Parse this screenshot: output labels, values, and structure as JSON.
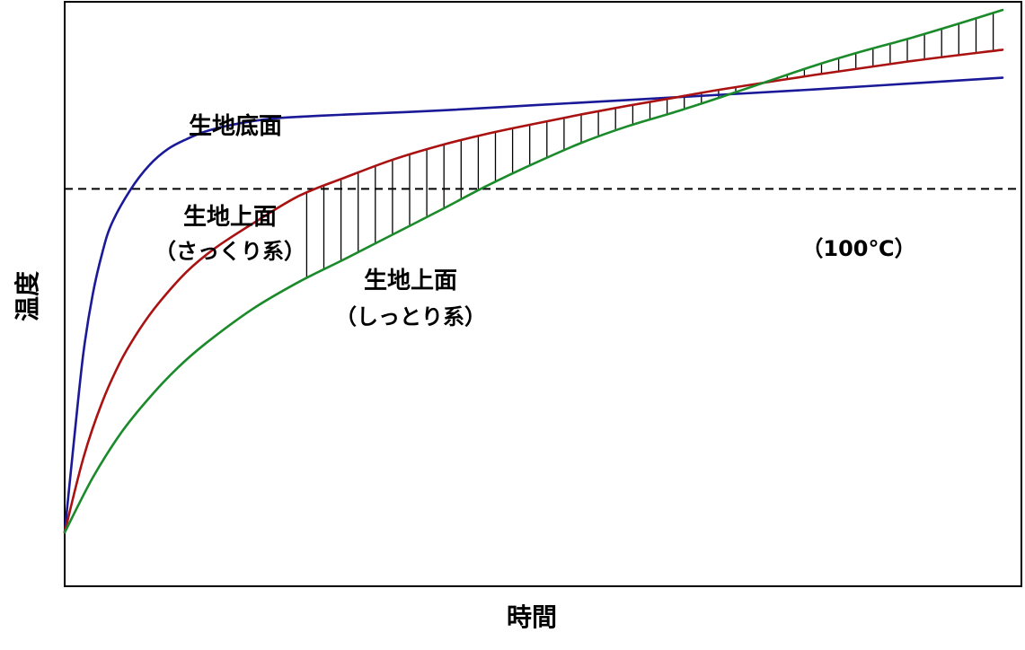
{
  "chart_data": {
    "type": "line",
    "title": "",
    "xlabel": "時間",
    "ylabel": "温度",
    "xlim": [
      0,
      100
    ],
    "ylim": [
      0,
      100
    ],
    "grid": false,
    "legend": "none",
    "reference_line": {
      "y": 68,
      "label": "（100℃）",
      "style": "dashed"
    },
    "shaded_region": {
      "between": [
        "crisp_top",
        "moist_top"
      ],
      "hatch": "vertical",
      "x_from": 25.8,
      "x_to": 100
    },
    "series": [
      {
        "id": "bottom",
        "name": "生地底面",
        "color": "#1a1a99",
        "x": [
          0,
          1,
          2,
          3,
          4,
          5,
          7,
          9,
          11,
          13,
          15,
          18,
          22,
          26,
          30,
          40,
          50,
          60,
          70,
          80,
          90,
          100
        ],
        "y": [
          9.2,
          25,
          40,
          50,
          57,
          62,
          67.8,
          72,
          74.8,
          76.5,
          77.8,
          79,
          80,
          80.4,
          80.7,
          81.4,
          82.3,
          83.2,
          84.1,
          85,
          86,
          87
        ]
      },
      {
        "id": "crisp_top",
        "name": "生地上面",
        "name2": "（さっくり系）",
        "color": "#aa1111",
        "x": [
          0,
          2,
          4,
          6,
          8,
          10,
          13,
          16,
          20,
          25,
          30,
          35,
          40,
          45,
          50,
          55,
          60,
          65,
          70,
          80,
          90,
          100
        ],
        "y": [
          9.2,
          22,
          31.5,
          38.6,
          44,
          48.4,
          53.8,
          57.8,
          62,
          66.8,
          70,
          73,
          75.4,
          77.4,
          79.1,
          80.7,
          82.2,
          83.6,
          85,
          87.5,
          89.8,
          91.8
        ]
      },
      {
        "id": "moist_top",
        "name": "生地上面",
        "name2": "（しっとり系）",
        "color": "#1a8a2a",
        "x": [
          0,
          3,
          6,
          9,
          12,
          15,
          20,
          25,
          30,
          35,
          40,
          45,
          50,
          55,
          60,
          65,
          70,
          75,
          80,
          85,
          90,
          95,
          100
        ],
        "y": [
          9.2,
          18.6,
          26.2,
          32.2,
          37.3,
          41.5,
          47.4,
          52.1,
          56.1,
          60.2,
          64.3,
          68.5,
          72.3,
          75.8,
          78.7,
          81.1,
          83.7,
          86.4,
          89.1,
          91.5,
          93.7,
          96.1,
          98.6
        ]
      }
    ],
    "annotations": [
      {
        "series": "bottom",
        "lines": [
          "生地底面"
        ]
      },
      {
        "series": "crisp_top",
        "lines": [
          "生地上面",
          "（さっくり系）"
        ]
      },
      {
        "series": "moist_top",
        "lines": [
          "生地上面",
          "（しっとり系）"
        ]
      },
      {
        "series": "reference",
        "lines": [
          "（100℃）"
        ]
      }
    ]
  }
}
